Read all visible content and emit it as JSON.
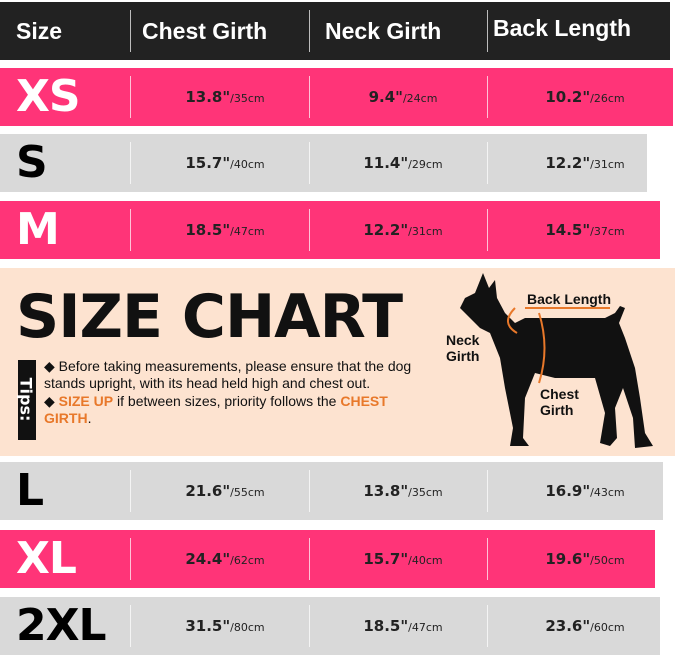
{
  "header": {
    "size": "Size",
    "chest": "Chest Girth",
    "neck": "Neck Girth",
    "back": "Back Length"
  },
  "rows": [
    {
      "size": "XS",
      "chest_in": "13.8\"",
      "chest_cm": "/35cm",
      "neck_in": "9.4\"",
      "neck_cm": "/24cm",
      "back_in": "10.2\"",
      "back_cm": "/26cm"
    },
    {
      "size": "S",
      "chest_in": "15.7\"",
      "chest_cm": "/40cm",
      "neck_in": "11.4\"",
      "neck_cm": "/29cm",
      "back_in": "12.2\"",
      "back_cm": "/31cm"
    },
    {
      "size": "M",
      "chest_in": "18.5\"",
      "chest_cm": "/47cm",
      "neck_in": "12.2\"",
      "neck_cm": "/31cm",
      "back_in": "14.5\"",
      "back_cm": "/37cm"
    },
    {
      "size": "L",
      "chest_in": "21.6\"",
      "chest_cm": "/55cm",
      "neck_in": "13.8\"",
      "neck_cm": "/35cm",
      "back_in": "16.9\"",
      "back_cm": "/43cm"
    },
    {
      "size": "XL",
      "chest_in": "24.4\"",
      "chest_cm": "/62cm",
      "neck_in": "15.7\"",
      "neck_cm": "/40cm",
      "back_in": "19.6\"",
      "back_cm": "/50cm"
    },
    {
      "size": "2XL",
      "chest_in": "31.5\"",
      "chest_cm": "/80cm",
      "neck_in": "18.5\"",
      "neck_cm": "/47cm",
      "back_in": "23.6\"",
      "back_cm": "/60cm"
    }
  ],
  "banner": {
    "title": "SIZE CHART",
    "tips_label": "Tips:",
    "tip1": "Before taking measurements, please ensure that the dog stands upright, with its head held high and chest out.",
    "tip2_highlight": "SIZE UP",
    "tip2_text": " if between sizes, priority follows the ",
    "tip2_highlight2": "CHEST GIRTH",
    "tip2_end": ".",
    "labels": {
      "back": "Back Length",
      "neck": "Neck Girth",
      "chest": "Chest Girth"
    }
  },
  "colors": {
    "pink": "#ff3478",
    "gray": "#d9d9d9",
    "header": "#222222",
    "banner": "#fde3d0",
    "accent": "#e8782a"
  }
}
